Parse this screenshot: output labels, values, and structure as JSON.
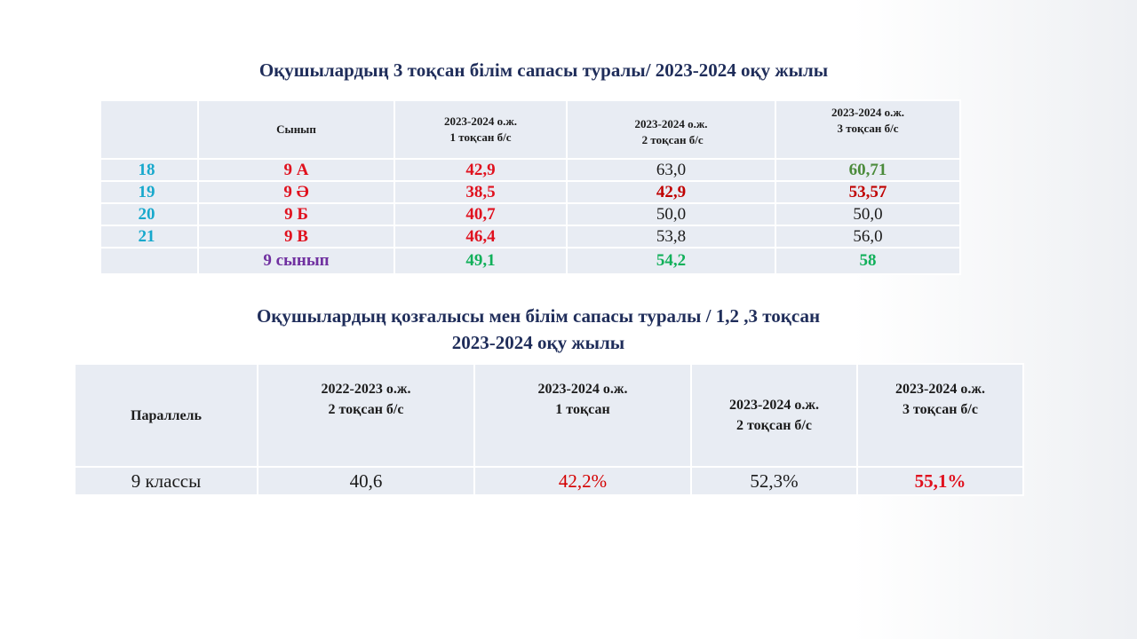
{
  "title1": "Оқушылардың 3 тоқсан білім сапасы туралы/ 2023-2024 оқу жылы",
  "title2_line1": "Оқушылардың қозғалысы мен білім сапасы туралы / 1,2 ,3 тоқсан",
  "title2_line2": "2023-2024 оқу жылы",
  "table1": {
    "headers": [
      "",
      "Сынып",
      "2023-2024 о.ж.\n1 тоқсан б/с",
      "2023-2024 о.ж.\n 2 тоқсан б/с",
      "2023-2024 о.ж.\n3 тоқсан б/с"
    ],
    "header_lines": {
      "col2_l1": "2023-2024 о.ж.",
      "col2_l2": "1 тоқсан б/с",
      "col3_l1": "2023-2024 о.ж.",
      "col3_l2": " 2 тоқсан б/с",
      "col4_l1": "2023-2024 о.ж.",
      "col4_l2": "3 тоқсан б/с"
    },
    "rows": [
      {
        "no": "18",
        "class": "9 А",
        "q1": "42,9",
        "q2": "63,0",
        "q3": "60,71"
      },
      {
        "no": "19",
        "class": "9 Ә",
        "q1": "38,5",
        "q2": "42,9",
        "q3": "53,57"
      },
      {
        "no": "20",
        "class": "9 Б",
        "q1": "40,7",
        "q2": "50,0",
        "q3": "50,0"
      },
      {
        "no": "21",
        "class": "9 В",
        "q1": "46,4",
        "q2": "53,8",
        "q3": "56,0"
      }
    ],
    "total": {
      "no": "",
      "class": "9 сынып",
      "q1": "49,1",
      "q2": "54,2",
      "q3": "58"
    }
  },
  "table2": {
    "header_lines": {
      "col0": "Параллель",
      "col1_l1": "2022-2023 о.ж.",
      "col1_l2": "2 тоқсан б/с",
      "col2_l1": "2023-2024 о.ж.",
      "col2_l2": "1 тоқсан",
      "col3_l1": "2023-2024 о.ж.",
      "col3_l2": "2 тоқсан б/с",
      "col4_l1": "2023-2024 о.ж.",
      "col4_l2": "3 тоқсан б/с"
    },
    "row": {
      "parallel": "9 классы",
      "v1": "40,6",
      "v2": "42,2%",
      "v3": "52,3%",
      "v4": "55,1%"
    }
  }
}
